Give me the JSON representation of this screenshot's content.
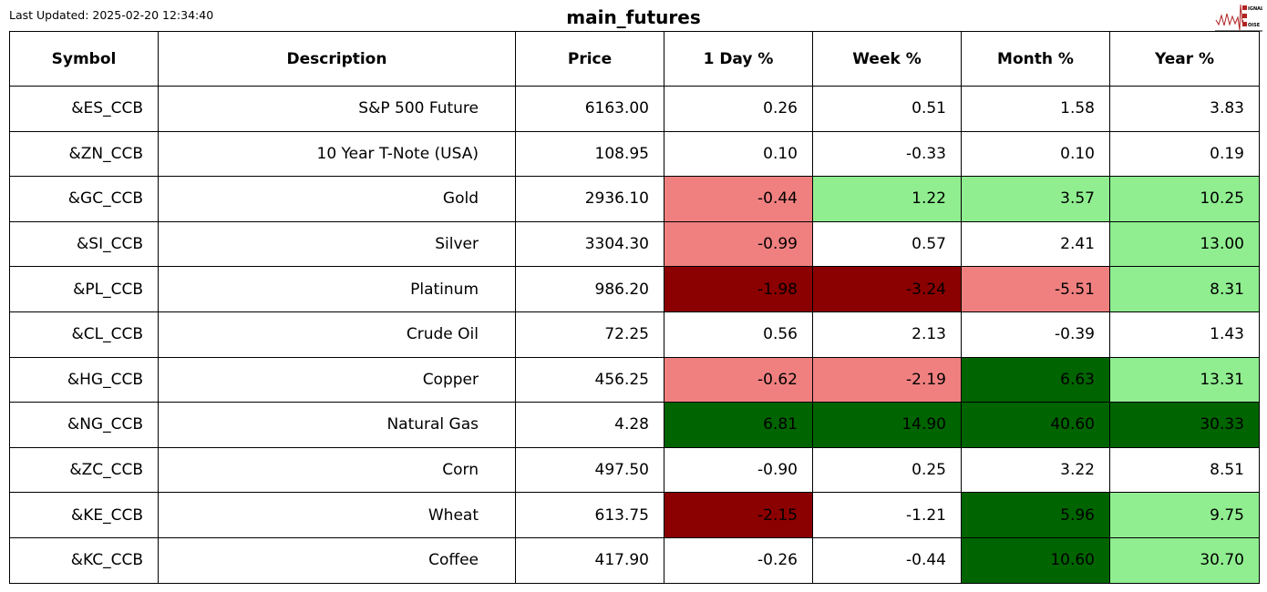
{
  "last_updated": "Last Updated: 2025-02-20 12:34:40",
  "title": "main_futures",
  "logo": {
    "text": "SIGNAL 2 NOISE",
    "color": "#b22222"
  },
  "colors": {
    "lightcoral": "#f08080",
    "lightgreen": "#90ee90",
    "darkred": "#8b0000",
    "darkgreen": "#006400",
    "none": "#ffffff"
  },
  "chart_data": {
    "type": "table",
    "title": "main_futures",
    "columns": [
      "Symbol",
      "Description",
      "Price",
      "1 Day %",
      "Week %",
      "Month %",
      "Year %"
    ],
    "rows": [
      [
        "&ES_CCB",
        "S&P 500 Future",
        "6163.00",
        "0.26",
        "0.51",
        "1.58",
        "3.83"
      ],
      [
        "&ZN_CCB",
        "10 Year T-Note (USA)",
        "108.95",
        "0.10",
        "-0.33",
        "0.10",
        "0.19"
      ],
      [
        "&GC_CCB",
        "Gold",
        "2936.10",
        "-0.44",
        "1.22",
        "3.57",
        "10.25"
      ],
      [
        "&SI_CCB",
        "Silver",
        "3304.30",
        "-0.99",
        "0.57",
        "2.41",
        "13.00"
      ],
      [
        "&PL_CCB",
        "Platinum",
        "986.20",
        "-1.98",
        "-3.24",
        "-5.51",
        "8.31"
      ],
      [
        "&CL_CCB",
        "Crude Oil",
        "72.25",
        "0.56",
        "2.13",
        "-0.39",
        "1.43"
      ],
      [
        "&HG_CCB",
        "Copper",
        "456.25",
        "-0.62",
        "-2.19",
        "6.63",
        "13.31"
      ],
      [
        "&NG_CCB",
        "Natural Gas",
        "4.28",
        "6.81",
        "14.90",
        "40.60",
        "30.33"
      ],
      [
        "&ZC_CCB",
        "Corn",
        "497.50",
        "-0.90",
        "0.25",
        "3.22",
        "8.51"
      ],
      [
        "&KE_CCB",
        "Wheat",
        "613.75",
        "-2.15",
        "-1.21",
        "5.96",
        "9.75"
      ],
      [
        "&KC_CCB",
        "Coffee",
        "417.90",
        "-0.26",
        "-0.44",
        "10.60",
        "30.70"
      ]
    ],
    "cell_fills": [
      [
        "none",
        "none",
        "none",
        "none"
      ],
      [
        "none",
        "none",
        "none",
        "none"
      ],
      [
        "lightcoral",
        "lightgreen",
        "lightgreen",
        "lightgreen"
      ],
      [
        "lightcoral",
        "none",
        "none",
        "lightgreen"
      ],
      [
        "darkred",
        "darkred",
        "lightcoral",
        "lightgreen"
      ],
      [
        "none",
        "none",
        "none",
        "none"
      ],
      [
        "lightcoral",
        "lightcoral",
        "darkgreen",
        "lightgreen"
      ],
      [
        "darkgreen",
        "darkgreen",
        "darkgreen",
        "darkgreen"
      ],
      [
        "none",
        "none",
        "none",
        "none"
      ],
      [
        "darkred",
        "none",
        "darkgreen",
        "lightgreen"
      ],
      [
        "none",
        "none",
        "darkgreen",
        "lightgreen"
      ]
    ]
  }
}
